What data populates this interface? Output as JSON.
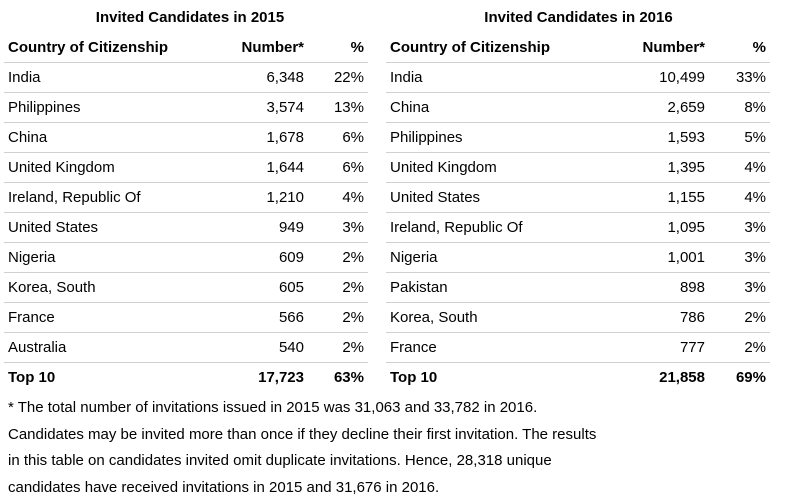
{
  "tables": [
    {
      "title": "Invited Candidates in 2015",
      "header": [
        "Country of Citizenship",
        "Number*",
        "%"
      ],
      "rows": [
        [
          "India",
          "6,348",
          "22%"
        ],
        [
          "Philippines",
          "3,574",
          "13%"
        ],
        [
          "China",
          "1,678",
          "6%"
        ],
        [
          "United Kingdom",
          "1,644",
          "6%"
        ],
        [
          "Ireland, Republic Of",
          "1,210",
          "4%"
        ],
        [
          "United States",
          "949",
          "3%"
        ],
        [
          "Nigeria",
          "609",
          "2%"
        ],
        [
          "Korea, South",
          "605",
          "2%"
        ],
        [
          "France",
          "566",
          "2%"
        ],
        [
          "Australia",
          "540",
          "2%"
        ]
      ],
      "total": [
        "Top 10",
        "17,723",
        "63%"
      ]
    },
    {
      "title": "Invited Candidates in 2016",
      "header": [
        "Country of Citizenship",
        "Number*",
        "%"
      ],
      "rows": [
        [
          "India",
          "10,499",
          "33%"
        ],
        [
          "China",
          "2,659",
          "8%"
        ],
        [
          "Philippines",
          "1,593",
          "5%"
        ],
        [
          "United Kingdom",
          "1,395",
          "4%"
        ],
        [
          "United States",
          "1,155",
          "4%"
        ],
        [
          "Ireland, Republic Of",
          "1,095",
          "3%"
        ],
        [
          "Nigeria",
          "1,001",
          "3%"
        ],
        [
          "Pakistan",
          "898",
          "3%"
        ],
        [
          "Korea, South",
          "786",
          "2%"
        ],
        [
          "France",
          "777",
          "2%"
        ]
      ],
      "total": [
        "Top 10",
        "21,858",
        "69%"
      ]
    }
  ],
  "footnote": [
    "* The total number of invitations issued in 2015 was 31,063 and 33,782 in 2016.",
    "Candidates may be invited more than once if they decline their first invitation. The results",
    "in this table on candidates invited omit duplicate invitations. Hence, 28,318 unique",
    "candidates have received invitations in 2015 and 31,676 in 2016."
  ]
}
